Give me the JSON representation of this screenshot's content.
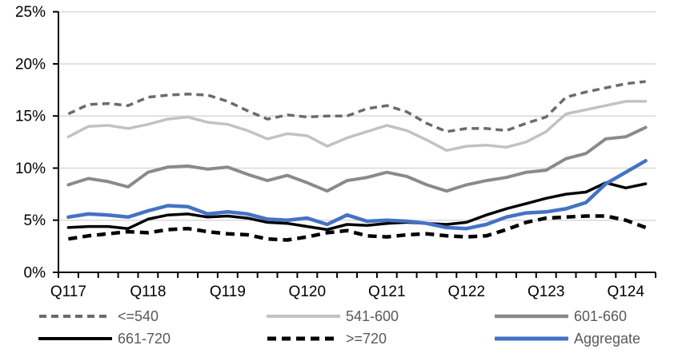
{
  "chart_data": {
    "type": "line",
    "title": "",
    "xlabel": "",
    "ylabel": "",
    "grid": true,
    "legend_position": "bottom",
    "ylim": [
      0,
      25
    ],
    "y_tick_labels": [
      "0%",
      "5%",
      "10%",
      "15%",
      "20%",
      "25%"
    ],
    "y_tick_values": [
      0,
      5,
      10,
      15,
      20,
      25
    ],
    "x_tick_labels": [
      "Q117",
      "Q118",
      "Q119",
      "Q120",
      "Q121",
      "Q122",
      "Q123",
      "Q124"
    ],
    "x_label_indices": [
      0,
      4,
      8,
      12,
      16,
      20,
      24,
      28
    ],
    "n_points": 30,
    "series": [
      {
        "name": "<=540",
        "color": "#6b6b6b",
        "dash": "9 6",
        "width": 3.5,
        "values": [
          15.2,
          16.1,
          16.2,
          16.0,
          16.8,
          17.0,
          17.1,
          17.0,
          16.4,
          15.5,
          14.7,
          15.1,
          14.9,
          15.0,
          15.0,
          15.7,
          16.0,
          15.4,
          14.3,
          13.5,
          13.8,
          13.8,
          13.6,
          14.3,
          14.9,
          16.8,
          17.3,
          17.7,
          18.1,
          18.3
        ]
      },
      {
        "name": "541-600",
        "color": "#c2c2c2",
        "dash": null,
        "width": 3.5,
        "values": [
          13.0,
          14.0,
          14.1,
          13.8,
          14.2,
          14.7,
          14.9,
          14.4,
          14.2,
          13.6,
          12.8,
          13.3,
          13.1,
          12.1,
          12.9,
          13.5,
          14.1,
          13.6,
          12.7,
          11.7,
          12.1,
          12.2,
          12.0,
          12.5,
          13.5,
          15.2,
          15.6,
          16.0,
          16.4,
          16.4
        ]
      },
      {
        "name": "601-660",
        "color": "#8a8a8a",
        "dash": null,
        "width": 4,
        "values": [
          8.4,
          9.0,
          8.7,
          8.2,
          9.6,
          10.1,
          10.2,
          9.9,
          10.1,
          9.4,
          8.8,
          9.3,
          8.6,
          7.8,
          8.8,
          9.1,
          9.6,
          9.2,
          8.4,
          7.8,
          8.4,
          8.8,
          9.1,
          9.6,
          9.8,
          10.9,
          11.4,
          12.8,
          13.0,
          13.9
        ]
      },
      {
        "name": "661-720",
        "color": "#000000",
        "dash": null,
        "width": 3.5,
        "values": [
          4.3,
          4.4,
          4.4,
          4.2,
          5.1,
          5.5,
          5.6,
          5.3,
          5.4,
          5.2,
          4.8,
          4.7,
          4.4,
          4.1,
          4.6,
          4.5,
          4.7,
          4.8,
          4.7,
          4.6,
          4.8,
          5.5,
          6.1,
          6.6,
          7.1,
          7.5,
          7.7,
          8.6,
          8.1,
          8.5
        ]
      },
      {
        "name": ">=720",
        "color": "#000000",
        "dash": "11 7",
        "width": 4.5,
        "values": [
          3.2,
          3.5,
          3.7,
          3.9,
          3.8,
          4.1,
          4.2,
          3.9,
          3.7,
          3.6,
          3.2,
          3.1,
          3.4,
          3.8,
          4.0,
          3.5,
          3.4,
          3.6,
          3.7,
          3.5,
          3.4,
          3.5,
          4.1,
          4.8,
          5.2,
          5.3,
          5.4,
          5.4,
          5.0,
          4.3
        ]
      },
      {
        "name": "Aggregate",
        "color": "#4472c4",
        "dash": null,
        "width": 4.5,
        "values": [
          5.3,
          5.6,
          5.5,
          5.3,
          5.9,
          6.4,
          6.3,
          5.6,
          5.8,
          5.6,
          5.1,
          5.0,
          5.2,
          4.6,
          5.5,
          4.9,
          5.0,
          4.9,
          4.7,
          4.3,
          4.2,
          4.6,
          5.3,
          5.7,
          5.8,
          6.1,
          6.7,
          8.5,
          9.6,
          10.7
        ]
      }
    ],
    "colors": {
      "gridline": "#d9d9d9",
      "axis": "#000000",
      "legend_text": "#595959",
      "accent_blue": "#4472c4"
    }
  }
}
